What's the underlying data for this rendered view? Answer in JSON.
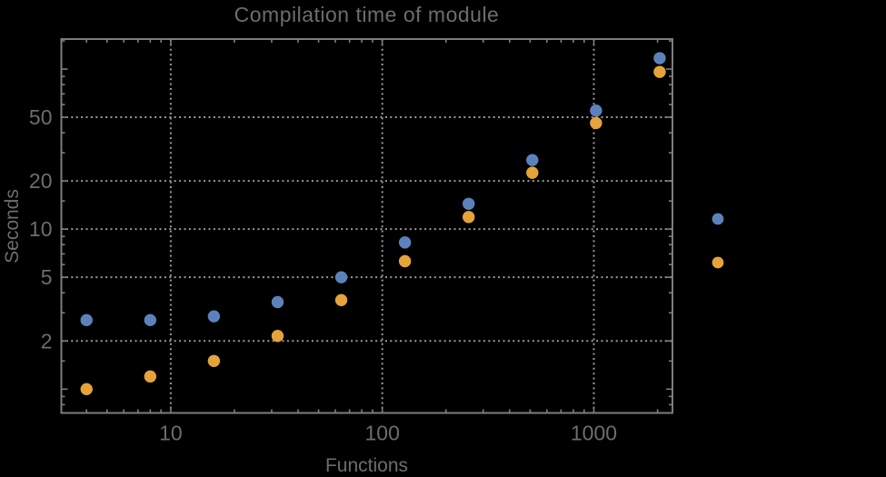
{
  "chart_data": {
    "type": "scatter",
    "title": "Compilation time of module",
    "xlabel": "Functions",
    "ylabel": "Seconds",
    "x_axis": {
      "scale": "log",
      "range": [
        3.04,
        2353
      ],
      "major_ticks": [
        {
          "value": 10,
          "label": "10"
        },
        {
          "value": 100,
          "label": "100"
        },
        {
          "value": 1000,
          "label": "1000"
        }
      ],
      "minor_ticks": [
        4,
        5,
        6,
        7,
        8,
        9,
        20,
        30,
        40,
        50,
        60,
        70,
        80,
        90,
        200,
        300,
        400,
        500,
        600,
        700,
        800,
        900,
        2000
      ],
      "gridlines": [
        10,
        100,
        1000
      ]
    },
    "y_axis": {
      "scale": "log",
      "range": [
        0.71,
        154
      ],
      "major_ticks": [
        {
          "value": 1,
          "label": ""
        },
        {
          "value": 2,
          "label": "2"
        },
        {
          "value": 5,
          "label": "5"
        },
        {
          "value": 10,
          "label": "10"
        },
        {
          "value": 20,
          "label": "20"
        },
        {
          "value": 50,
          "label": "50"
        },
        {
          "value": 100,
          "label": ""
        }
      ],
      "minor_ticks": [
        0.8,
        0.9,
        1.5,
        3,
        4,
        6,
        7,
        8,
        9,
        15,
        30,
        40,
        60,
        70,
        80,
        90,
        150
      ],
      "gridlines": [
        2,
        5,
        10,
        20,
        50
      ]
    },
    "grid_on": true,
    "series": [
      {
        "name": "blue-series",
        "color": "#5c82bb",
        "points": [
          [
            4,
            2.7
          ],
          [
            8,
            2.7
          ],
          [
            16,
            2.85
          ],
          [
            32,
            3.5
          ],
          [
            64,
            5.0
          ],
          [
            128,
            8.25
          ],
          [
            256,
            14.4
          ],
          [
            512,
            27
          ],
          [
            1024,
            55
          ],
          [
            2048,
            117
          ]
        ]
      },
      {
        "name": "orange-series",
        "color": "#e5a33b",
        "points": [
          [
            4,
            1.0
          ],
          [
            8,
            1.2
          ],
          [
            16,
            1.5
          ],
          [
            32,
            2.15
          ],
          [
            64,
            3.6
          ],
          [
            128,
            6.3
          ],
          [
            256,
            11.9
          ],
          [
            512,
            22.5
          ],
          [
            1024,
            46
          ],
          [
            2048,
            96
          ]
        ]
      }
    ],
    "legend": {
      "position": "right-outside",
      "labels_visible": false,
      "entries": [
        {
          "marker": "circle",
          "color": "#5c82bb",
          "label": ""
        },
        {
          "marker": "circle",
          "color": "#e5a33b",
          "label": ""
        }
      ]
    },
    "style": {
      "background": "#000000",
      "frame_color": "#7d7d7d",
      "grid_color": "#9a9a9a",
      "text_color": "#6d6d6d"
    }
  }
}
